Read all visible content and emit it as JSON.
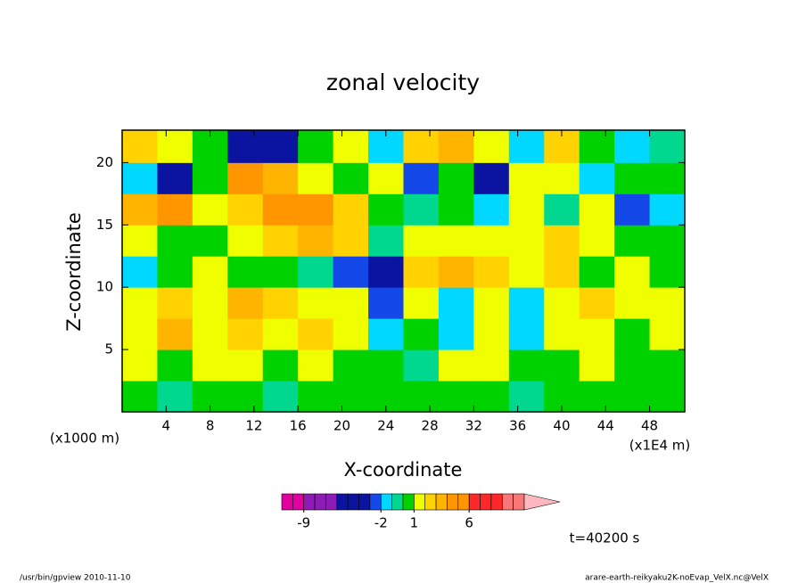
{
  "chart_data": {
    "type": "contour",
    "title": "zonal velocity",
    "x_label": "X-coordinate",
    "y_label": "Z-coordinate",
    "x_unit_left": "(x1000 m)",
    "x_unit_right": "(x1E4 m)",
    "time_label": "t=40200 s",
    "footer_left": "/usr/bin/gpview   2010-11-10",
    "footer_right": "arare-earth-reikyaku2K-noEvap_VelX.nc@VelX",
    "xlim": [
      0,
      51.2
    ],
    "ylim": [
      0,
      22.6
    ],
    "xticks": [
      4,
      8,
      12,
      16,
      20,
      24,
      28,
      32,
      36,
      40,
      44,
      48
    ],
    "yticks": [
      5,
      10,
      15,
      20
    ],
    "levels": [
      -11,
      -10,
      -9,
      -8,
      -7,
      -6,
      -5,
      -4,
      -3,
      -2,
      -1,
      0,
      1,
      2,
      3,
      4,
      5,
      6,
      7,
      8,
      9,
      10,
      11
    ],
    "colors": [
      "#e000a0",
      "#e000a0",
      "#8c1cb4",
      "#8c1cb4",
      "#8c1cb4",
      "#0a14a0",
      "#0a14a0",
      "#0a14a0",
      "#1448e8",
      "#00d8ff",
      "#00d890",
      "#00d200",
      "#f0ff00",
      "#ffd200",
      "#ffb400",
      "#ff9600",
      "#ff9600",
      "#ff2828",
      "#ff2828",
      "#ff2828",
      "#f87878",
      "#f87878"
    ],
    "extend_color": "#ffb8c0",
    "cbar_ticks": [
      -9,
      -2,
      1,
      6
    ],
    "field": {
      "x": [
        1.6,
        4.8,
        8,
        11.2,
        14.4,
        17.6,
        20.8,
        24,
        27.2,
        30.4,
        33.6,
        36.8,
        40,
        43.2,
        46.4,
        49.6
      ],
      "z": [
        1.25,
        3.75,
        6.25,
        8.75,
        11.25,
        13.75,
        16.25,
        18.75,
        21.25
      ],
      "values": [
        [
          0.5,
          -0.5,
          0.5,
          0.5,
          -0.5,
          0.5,
          0.5,
          0.5,
          0.5,
          0.5,
          0.5,
          -0.5,
          0.5,
          0.5,
          0.5,
          0.5
        ],
        [
          1.5,
          0.5,
          1.5,
          1.5,
          0.5,
          1.5,
          0.5,
          0.5,
          -0.5,
          1.5,
          1.5,
          0.5,
          0.5,
          1.5,
          0.5,
          0.5
        ],
        [
          1.5,
          3.5,
          1.5,
          2.5,
          1.5,
          2.5,
          1.5,
          -1.5,
          0.5,
          -1.5,
          1.5,
          -1.5,
          1.5,
          1.5,
          0.5,
          1.5
        ],
        [
          1.5,
          2.5,
          1.5,
          3.5,
          2.5,
          1.5,
          1.5,
          -2.5,
          1.5,
          -1.5,
          1.5,
          -1.5,
          1.5,
          2.5,
          1.5,
          1.5
        ],
        [
          -1.5,
          0.5,
          1.5,
          0.5,
          0.5,
          -0.5,
          -2.5,
          -6,
          2.5,
          3.5,
          2.5,
          1.5,
          2.5,
          0.5,
          1.5,
          0.5
        ],
        [
          1.5,
          0.5,
          0.5,
          1.5,
          2.5,
          3.5,
          2.5,
          -0.5,
          1.5,
          1.5,
          1.5,
          1.5,
          2.5,
          1.5,
          0.5,
          0.5
        ],
        [
          3.5,
          4.5,
          1.5,
          2.5,
          4.5,
          4.5,
          2.5,
          0.5,
          -0.5,
          0.5,
          -1.5,
          1.5,
          -0.5,
          1.5,
          -2.5,
          -1.5
        ],
        [
          -1.5,
          -4,
          0.5,
          4.5,
          3.5,
          1.5,
          0.5,
          1.5,
          -2.5,
          0.5,
          -3.5,
          1.5,
          1.5,
          -1.5,
          0.5,
          0.5
        ],
        [
          2.5,
          1.5,
          0.5,
          -4,
          -5,
          0.5,
          1.5,
          -1.5,
          2.5,
          3.5,
          1.5,
          -1.5,
          2.5,
          0.5,
          -1.5,
          -0.5
        ]
      ]
    }
  }
}
